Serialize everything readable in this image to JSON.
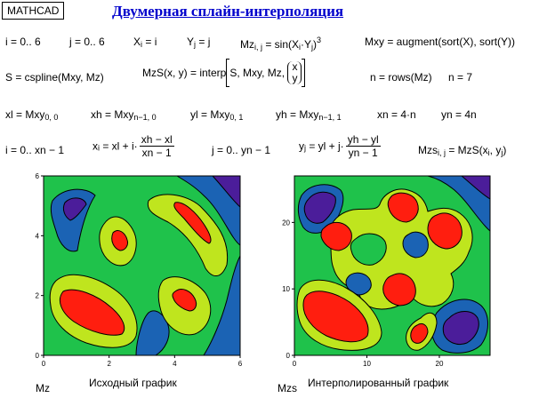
{
  "app": {
    "badge": "MATHCAD"
  },
  "title": "Двумерная сплайн-интерполяция",
  "row1": {
    "i": "i = 0.. 6",
    "j": "j = 0.. 6",
    "x_pre": "X",
    "x_sub": "i",
    "x_post": " = i",
    "y_pre": "Y",
    "y_sub": "j",
    "y_post": " = j",
    "mz_pre": "Mz",
    "mz_sub": "i, j",
    "mz_mid": " = sin(X",
    "mz_sub2": "i",
    "mz_mid2": "·Y",
    "mz_sub3": "j",
    "mz_end": ")",
    "mz_sup": "3",
    "mxy": "Mxy = augment(sort(X), sort(Y))"
  },
  "row2": {
    "s": "S = cspline(Mxy, Mz)",
    "mzs_pre": "MzS(x, y) = interp",
    "mzs_args": "S, Mxy, Mz,",
    "vx": "x",
    "vy": "y",
    "n": "n = rows(Mz)",
    "n7": "n = 7"
  },
  "row3": {
    "xl_pre": "xl = Mxy",
    "xl_sub": "0, 0",
    "xh_pre": "xh = Mxy",
    "xh_sub": "n−1, 0",
    "yl_pre": "yl = Mxy",
    "yl_sub": "0, 1",
    "yh_pre": "yh = Mxy",
    "yh_sub": "n−1, 1",
    "xn": "xn = 4·n",
    "yn": "yn = 4n"
  },
  "row4": {
    "i2": "i = 0.. xn − 1",
    "xi_pre": "x",
    "xi_sub": "i",
    "xi_mid": " = xl + i·",
    "xi_num": "xh − xl",
    "xi_den": "xn − 1",
    "j2": "j = 0.. yn − 1",
    "yj_pre": "y",
    "yj_sub": "j",
    "yj_mid": " = yl + j·",
    "yj_num": "yh − yl",
    "yj_den": "yn − 1",
    "mzs_pre": "Mzs",
    "mzs_sub": "i, j",
    "mzs_mid": " = MzS(x",
    "mzs_sub2": "i",
    "mzs_mid2": ", y",
    "mzs_sub3": "j",
    "mzs_end": ")"
  },
  "plot_left": {
    "var": "Mz",
    "caption": "Исходный график",
    "xticks": [
      "0",
      "2",
      "4",
      "6"
    ],
    "yticks": [
      "0",
      "2",
      "4",
      "6"
    ]
  },
  "plot_right": {
    "var": "Mzs",
    "caption": "Интерполированный график",
    "xticks": [
      "0",
      "10",
      "20"
    ],
    "yticks": [
      "0",
      "10",
      "20"
    ]
  },
  "colors": {
    "green": "#1fc24b",
    "yellowgreen": "#bfe51e",
    "red": "#ff1e0f",
    "blue": "#1b63b4",
    "purple": "#4b1d9a",
    "title": "#0000cc"
  }
}
